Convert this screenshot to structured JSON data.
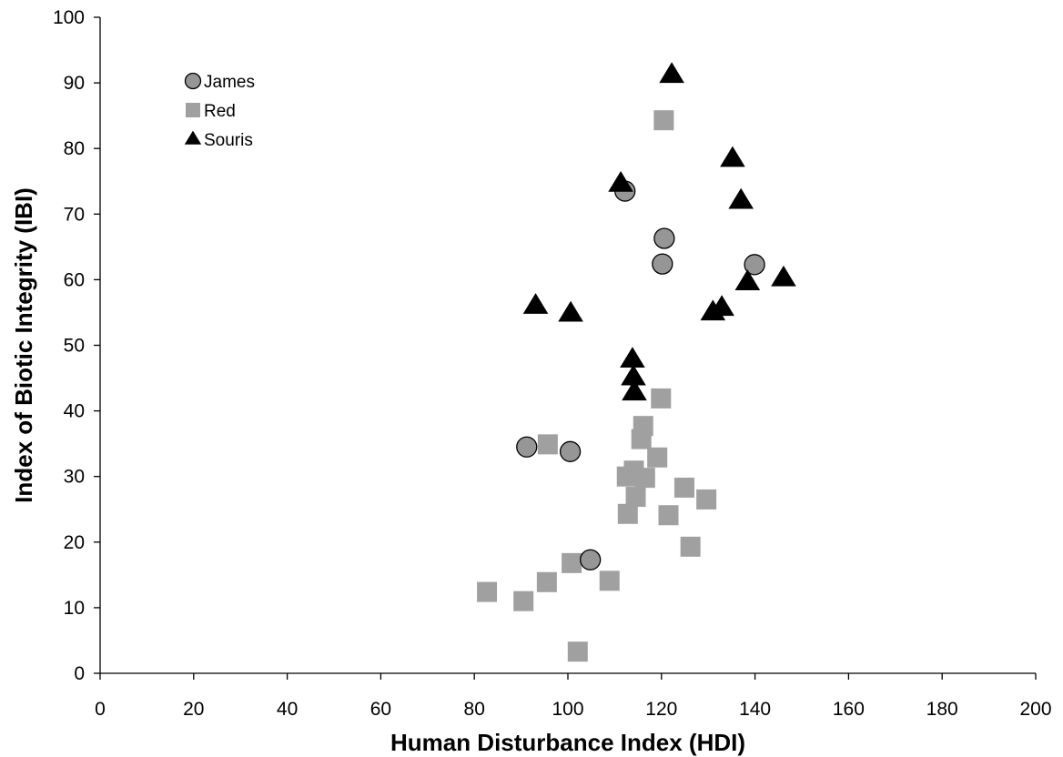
{
  "chart_data": {
    "type": "scatter",
    "title": "",
    "xlabel": "Human Disturbance Index (HDI)",
    "ylabel": "Index of Biotic Integrity (IBI)",
    "xlim": [
      0,
      200
    ],
    "ylim": [
      0,
      100
    ],
    "xticks": [
      0,
      20,
      40,
      60,
      80,
      100,
      120,
      140,
      160,
      180,
      200
    ],
    "yticks": [
      0,
      10,
      20,
      30,
      40,
      50,
      60,
      70,
      80,
      90,
      100
    ],
    "grid": false,
    "legend_position": "top-left",
    "series": [
      {
        "name": "James",
        "marker": "circle",
        "color": "#969696",
        "points": [
          [
            91.2,
            34.5
          ],
          [
            100.5,
            33.8
          ],
          [
            104.8,
            17.3
          ],
          [
            112.2,
            73.5
          ],
          [
            120.2,
            62.4
          ],
          [
            120.6,
            66.3
          ],
          [
            139.9,
            62.3
          ]
        ]
      },
      {
        "name": "Red",
        "marker": "square",
        "color": "#a0a0a0",
        "points": [
          [
            82.7,
            12.4
          ],
          [
            90.5,
            11.0
          ],
          [
            95.5,
            13.9
          ],
          [
            95.7,
            34.9
          ],
          [
            100.8,
            16.8
          ],
          [
            102.1,
            3.3
          ],
          [
            108.9,
            14.1
          ],
          [
            112.6,
            30.0
          ],
          [
            112.8,
            24.3
          ],
          [
            114.1,
            30.9
          ],
          [
            114.5,
            26.9
          ],
          [
            115.7,
            35.7
          ],
          [
            116.1,
            37.7
          ],
          [
            116.5,
            29.8
          ],
          [
            119.1,
            32.9
          ],
          [
            119.9,
            41.9
          ],
          [
            120.5,
            84.3
          ],
          [
            121.5,
            24.1
          ],
          [
            124.9,
            28.3
          ],
          [
            126.2,
            19.3
          ],
          [
            129.6,
            26.5
          ]
        ]
      },
      {
        "name": "Souris",
        "marker": "triangle",
        "color": "#000000",
        "points": [
          [
            93.1,
            56.0
          ],
          [
            100.6,
            54.8
          ],
          [
            111.3,
            74.6
          ],
          [
            113.8,
            47.8
          ],
          [
            114.0,
            45.1
          ],
          [
            114.2,
            42.8
          ],
          [
            122.2,
            91.2
          ],
          [
            131.0,
            55.0
          ],
          [
            132.9,
            55.7
          ],
          [
            135.2,
            78.4
          ],
          [
            137.0,
            72.0
          ],
          [
            138.4,
            59.6
          ],
          [
            146.1,
            60.2
          ]
        ]
      }
    ]
  }
}
